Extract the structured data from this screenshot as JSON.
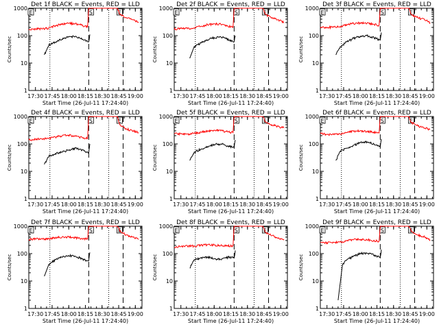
{
  "colors": {
    "events": "#000000",
    "lld": "#ff0000",
    "axes": "#000000",
    "background": "#ffffff"
  },
  "chart_data": [
    {
      "type": "line",
      "title": "Det 1f BLACK = Events, RED = LLD",
      "xlabel": "Start Time (26-Jul-11 17:24:40)",
      "ylabel": "Counts/sec",
      "yscale": "log",
      "ylim": [
        1,
        1000
      ],
      "x_ticks": [
        "17:30",
        "17:45",
        "18:00",
        "18:15",
        "18:30",
        "18:45",
        "19:00"
      ],
      "y_ticks": [
        "1",
        "10",
        "100",
        "1000"
      ],
      "markers": [
        {
          "label": "E",
          "time": "17:24"
        },
        {
          "label": "S",
          "time": "18:18"
        },
        {
          "label": "E",
          "time": "18:44"
        }
      ],
      "series": [
        {
          "name": "Events",
          "color": "#000000",
          "x": [
            "17:38",
            "17:42",
            "17:48",
            "17:54",
            "18:00",
            "18:06",
            "18:10",
            "18:14",
            "18:17",
            "18:18",
            "18:19"
          ],
          "y": [
            20,
            45,
            58,
            75,
            90,
            95,
            80,
            70,
            60,
            60,
            110
          ]
        },
        {
          "name": "LLD",
          "color": "#ff0000",
          "x": [
            "17:24",
            "17:30",
            "17:36",
            "17:42",
            "17:48",
            "17:54",
            "18:00",
            "18:06",
            "18:12",
            "18:17",
            "18:18",
            "18:44",
            "18:46",
            "18:52",
            "18:58",
            "19:03"
          ],
          "y": [
            160,
            180,
            175,
            190,
            230,
            260,
            280,
            270,
            240,
            210,
            1000,
            1000,
            600,
            450,
            380,
            300
          ]
        }
      ]
    },
    {
      "type": "line",
      "title": "Det 2f BLACK = Events, RED = LLD",
      "xlabel": "Start Time (26-Jul-11 17:24:40)",
      "ylabel": "Counts/sec",
      "yscale": "log",
      "ylim": [
        1,
        1000
      ],
      "x_ticks": [
        "17:30",
        "17:45",
        "18:00",
        "18:15",
        "18:30",
        "18:45",
        "19:00"
      ],
      "y_ticks": [
        "1",
        "10",
        "100",
        "1000"
      ],
      "markers": [
        {
          "label": "E",
          "time": "17:24"
        },
        {
          "label": "S",
          "time": "18:18"
        },
        {
          "label": "E",
          "time": "18:44"
        }
      ],
      "series": [
        {
          "name": "Events",
          "color": "#000000",
          "x": [
            "17:38",
            "17:42",
            "17:48",
            "17:54",
            "18:00",
            "18:06",
            "18:10",
            "18:14",
            "18:17",
            "18:18",
            "18:19"
          ],
          "y": [
            15,
            40,
            55,
            70,
            85,
            90,
            80,
            70,
            60,
            60,
            100
          ]
        },
        {
          "name": "LLD",
          "color": "#ff0000",
          "x": [
            "17:24",
            "17:30",
            "17:36",
            "17:42",
            "17:48",
            "17:54",
            "18:00",
            "18:06",
            "18:12",
            "18:17",
            "18:18",
            "18:44",
            "18:46",
            "18:52",
            "18:58",
            "19:03"
          ],
          "y": [
            170,
            190,
            180,
            190,
            220,
            250,
            270,
            260,
            230,
            200,
            1000,
            1000,
            600,
            450,
            380,
            300
          ]
        }
      ]
    },
    {
      "type": "line",
      "title": "Det 3f BLACK = Events, RED = LLD",
      "xlabel": "Start Time (26-Jul-11 17:24:40)",
      "ylabel": "Counts/sec",
      "yscale": "log",
      "ylim": [
        1,
        1000
      ],
      "x_ticks": [
        "17:30",
        "17:45",
        "18:00",
        "18:15",
        "18:30",
        "18:45",
        "19:00"
      ],
      "y_ticks": [
        "1",
        "10",
        "100",
        "1000"
      ],
      "markers": [
        {
          "label": "E",
          "time": "17:24"
        },
        {
          "label": "S",
          "time": "18:18"
        },
        {
          "label": "E",
          "time": "18:44"
        }
      ],
      "series": [
        {
          "name": "Events",
          "color": "#000000",
          "x": [
            "17:38",
            "17:42",
            "17:48",
            "17:54",
            "18:00",
            "18:06",
            "18:10",
            "18:14",
            "18:17",
            "18:18",
            "18:19"
          ],
          "y": [
            20,
            40,
            60,
            80,
            95,
            100,
            90,
            80,
            70,
            70,
            130
          ]
        },
        {
          "name": "LLD",
          "color": "#ff0000",
          "x": [
            "17:24",
            "17:30",
            "17:36",
            "17:42",
            "17:48",
            "17:54",
            "18:00",
            "18:06",
            "18:12",
            "18:17",
            "18:18",
            "18:44",
            "18:46",
            "18:52",
            "18:58",
            "19:03"
          ],
          "y": [
            210,
            200,
            205,
            215,
            250,
            280,
            290,
            280,
            260,
            240,
            1000,
            1000,
            600,
            450,
            380,
            300
          ]
        }
      ]
    },
    {
      "type": "line",
      "title": "Det 4f BLACK = Events, RED = LLD",
      "xlabel": "Start Time (26-Jul-11 17:24:40)",
      "ylabel": "Counts/sec",
      "yscale": "log",
      "ylim": [
        1,
        1000
      ],
      "x_ticks": [
        "17:30",
        "17:45",
        "18:00",
        "18:15",
        "18:30",
        "18:45",
        "19:00"
      ],
      "y_ticks": [
        "1",
        "10",
        "100",
        "1000"
      ],
      "markers": [
        {
          "label": "E",
          "time": "17:24"
        },
        {
          "label": "S",
          "time": "18:18"
        },
        {
          "label": "E",
          "time": "18:44"
        }
      ],
      "series": [
        {
          "name": "Events",
          "color": "#000000",
          "x": [
            "17:38",
            "17:42",
            "17:48",
            "17:54",
            "18:00",
            "18:06",
            "18:10",
            "18:14",
            "18:17",
            "18:18",
            "18:19"
          ],
          "y": [
            18,
            35,
            45,
            50,
            60,
            70,
            65,
            55,
            50,
            50,
            100
          ]
        },
        {
          "name": "LLD",
          "color": "#ff0000",
          "x": [
            "17:24",
            "17:30",
            "17:36",
            "17:42",
            "17:48",
            "17:54",
            "18:00",
            "18:06",
            "18:12",
            "18:17",
            "18:18",
            "18:44",
            "18:46",
            "18:52",
            "18:58",
            "19:03"
          ],
          "y": [
            140,
            150,
            150,
            160,
            180,
            200,
            210,
            190,
            170,
            160,
            1000,
            1000,
            500,
            350,
            300,
            260
          ]
        }
      ]
    },
    {
      "type": "line",
      "title": "Det 5f BLACK = Events, RED = LLD",
      "xlabel": "Start Time (26-Jul-11 17:24:40)",
      "ylabel": "Counts/sec",
      "yscale": "log",
      "ylim": [
        1,
        1000
      ],
      "x_ticks": [
        "17:30",
        "17:45",
        "18:00",
        "18:15",
        "18:30",
        "18:45",
        "19:00"
      ],
      "y_ticks": [
        "1",
        "10",
        "100",
        "1000"
      ],
      "markers": [
        {
          "label": "E",
          "time": "17:24"
        },
        {
          "label": "S",
          "time": "18:18"
        },
        {
          "label": "E",
          "time": "18:44"
        }
      ],
      "series": [
        {
          "name": "Events",
          "color": "#000000",
          "x": [
            "17:38",
            "17:42",
            "17:48",
            "17:54",
            "18:00",
            "18:06",
            "18:10",
            "18:14",
            "18:17",
            "18:18",
            "18:19"
          ],
          "y": [
            25,
            50,
            65,
            80,
            95,
            100,
            90,
            80,
            75,
            75,
            140
          ]
        },
        {
          "name": "LLD",
          "color": "#ff0000",
          "x": [
            "17:24",
            "17:30",
            "17:36",
            "17:42",
            "17:48",
            "17:54",
            "18:00",
            "18:06",
            "18:12",
            "18:17",
            "18:18",
            "18:44",
            "18:46",
            "18:52",
            "18:58",
            "19:03"
          ],
          "y": [
            240,
            230,
            230,
            240,
            270,
            300,
            310,
            300,
            280,
            260,
            1000,
            1000,
            650,
            500,
            430,
            380
          ]
        }
      ]
    },
    {
      "type": "line",
      "title": "Det 6f BLACK = Events, RED = LLD",
      "xlabel": "Start Time (26-Jul-11 17:24:40)",
      "ylabel": "Counts/sec",
      "yscale": "log",
      "ylim": [
        1,
        1000
      ],
      "x_ticks": [
        "17:30",
        "17:45",
        "18:00",
        "18:15",
        "18:30",
        "18:45",
        "19:00"
      ],
      "y_ticks": [
        "1",
        "10",
        "100",
        "1000"
      ],
      "markers": [
        {
          "label": "E",
          "time": "17:24"
        },
        {
          "label": "S",
          "time": "18:18"
        },
        {
          "label": "E",
          "time": "18:44"
        }
      ],
      "series": [
        {
          "name": "Events",
          "color": "#000000",
          "x": [
            "17:38",
            "17:42",
            "17:48",
            "17:54",
            "18:00",
            "18:06",
            "18:10",
            "18:14",
            "18:17",
            "18:18",
            "18:19"
          ],
          "y": [
            25,
            55,
            70,
            90,
            110,
            120,
            105,
            90,
            80,
            80,
            150
          ]
        },
        {
          "name": "LLD",
          "color": "#ff0000",
          "x": [
            "17:24",
            "17:30",
            "17:36",
            "17:42",
            "17:48",
            "17:54",
            "18:00",
            "18:06",
            "18:12",
            "18:17",
            "18:18",
            "18:44",
            "18:46",
            "18:52",
            "18:58",
            "19:03"
          ],
          "y": [
            240,
            220,
            220,
            230,
            260,
            290,
            300,
            290,
            270,
            250,
            1000,
            1000,
            600,
            450,
            380,
            340
          ]
        }
      ]
    },
    {
      "type": "line",
      "title": "Det 7f BLACK = Events, RED = LLD",
      "xlabel": "Start Time (26-Jul-11 17:24:40)",
      "ylabel": "Counts/sec",
      "yscale": "log",
      "ylim": [
        1,
        1000
      ],
      "x_ticks": [
        "17:30",
        "17:45",
        "18:00",
        "18:15",
        "18:30",
        "18:45",
        "19:00"
      ],
      "y_ticks": [
        "1",
        "10",
        "100",
        "1000"
      ],
      "markers": [
        {
          "label": "E",
          "time": "17:24"
        },
        {
          "label": "S",
          "time": "18:18"
        },
        {
          "label": "E",
          "time": "18:44"
        }
      ],
      "series": [
        {
          "name": "Events",
          "color": "#000000",
          "x": [
            "17:38",
            "17:42",
            "17:48",
            "17:54",
            "18:00",
            "18:06",
            "18:10",
            "18:14",
            "18:17",
            "18:18",
            "18:19"
          ],
          "y": [
            15,
            40,
            60,
            75,
            85,
            80,
            70,
            60,
            55,
            55,
            110
          ]
        },
        {
          "name": "LLD",
          "color": "#ff0000",
          "x": [
            "17:24",
            "17:30",
            "17:36",
            "17:42",
            "17:48",
            "17:54",
            "18:00",
            "18:06",
            "18:12",
            "18:17",
            "18:18",
            "18:44",
            "18:46",
            "18:52",
            "18:58",
            "19:03"
          ],
          "y": [
            330,
            340,
            340,
            350,
            380,
            400,
            400,
            380,
            360,
            340,
            1000,
            1000,
            650,
            480,
            400,
            330
          ]
        }
      ]
    },
    {
      "type": "line",
      "title": "Det 8f BLACK = Events, RED = LLD",
      "xlabel": "Start Time (26-Jul-11 17:24:40)",
      "ylabel": "Counts/sec",
      "yscale": "log",
      "ylim": [
        1,
        1000
      ],
      "x_ticks": [
        "17:30",
        "17:45",
        "18:00",
        "18:15",
        "18:30",
        "18:45",
        "19:00"
      ],
      "y_ticks": [
        "1",
        "10",
        "100",
        "1000"
      ],
      "markers": [
        {
          "label": "E",
          "time": "17:24"
        },
        {
          "label": "S",
          "time": "18:18"
        },
        {
          "label": "E",
          "time": "18:44"
        }
      ],
      "series": [
        {
          "name": "Events",
          "color": "#000000",
          "x": [
            "17:38",
            "17:42",
            "17:48",
            "17:54",
            "18:00",
            "18:06",
            "18:10",
            "18:14",
            "18:17",
            "18:18",
            "18:19"
          ],
          "y": [
            30,
            60,
            70,
            75,
            65,
            60,
            70,
            75,
            70,
            70,
            130
          ]
        },
        {
          "name": "LLD",
          "color": "#ff0000",
          "x": [
            "17:24",
            "17:30",
            "17:36",
            "17:42",
            "17:48",
            "17:54",
            "18:00",
            "18:06",
            "18:12",
            "18:17",
            "18:18",
            "18:44",
            "18:46",
            "18:52",
            "18:58",
            "19:03"
          ],
          "y": [
            170,
            180,
            185,
            190,
            200,
            210,
            205,
            200,
            195,
            190,
            1000,
            1000,
            600,
            450,
            380,
            310
          ]
        }
      ]
    },
    {
      "type": "line",
      "title": "Det 9f BLACK = Events, RED = LLD",
      "xlabel": "Start Time (26-Jul-11 17:24:40)",
      "ylabel": "Counts/sec",
      "yscale": "log",
      "ylim": [
        1,
        1000
      ],
      "x_ticks": [
        "17:30",
        "17:45",
        "18:00",
        "18:15",
        "18:30",
        "18:45",
        "19:00"
      ],
      "y_ticks": [
        "1",
        "10",
        "100",
        "1000"
      ],
      "markers": [
        {
          "label": "E",
          "time": "17:24"
        },
        {
          "label": "S",
          "time": "18:18"
        },
        {
          "label": "E",
          "time": "18:44"
        }
      ],
      "series": [
        {
          "name": "Events",
          "color": "#000000",
          "x": [
            "17:40",
            "17:44",
            "17:48",
            "17:54",
            "18:00",
            "18:06",
            "18:10",
            "18:14",
            "18:17",
            "18:18",
            "18:19"
          ],
          "y": [
            2,
            40,
            60,
            80,
            100,
            105,
            95,
            85,
            75,
            75,
            140
          ]
        },
        {
          "name": "LLD",
          "color": "#ff0000",
          "x": [
            "17:24",
            "17:30",
            "17:36",
            "17:42",
            "17:48",
            "17:54",
            "18:00",
            "18:06",
            "18:12",
            "18:17",
            "18:18",
            "18:44",
            "18:46",
            "18:52",
            "18:58",
            "19:03"
          ],
          "y": [
            260,
            250,
            255,
            265,
            290,
            320,
            330,
            320,
            300,
            280,
            1000,
            1000,
            650,
            480,
            400,
            320
          ]
        }
      ]
    }
  ]
}
